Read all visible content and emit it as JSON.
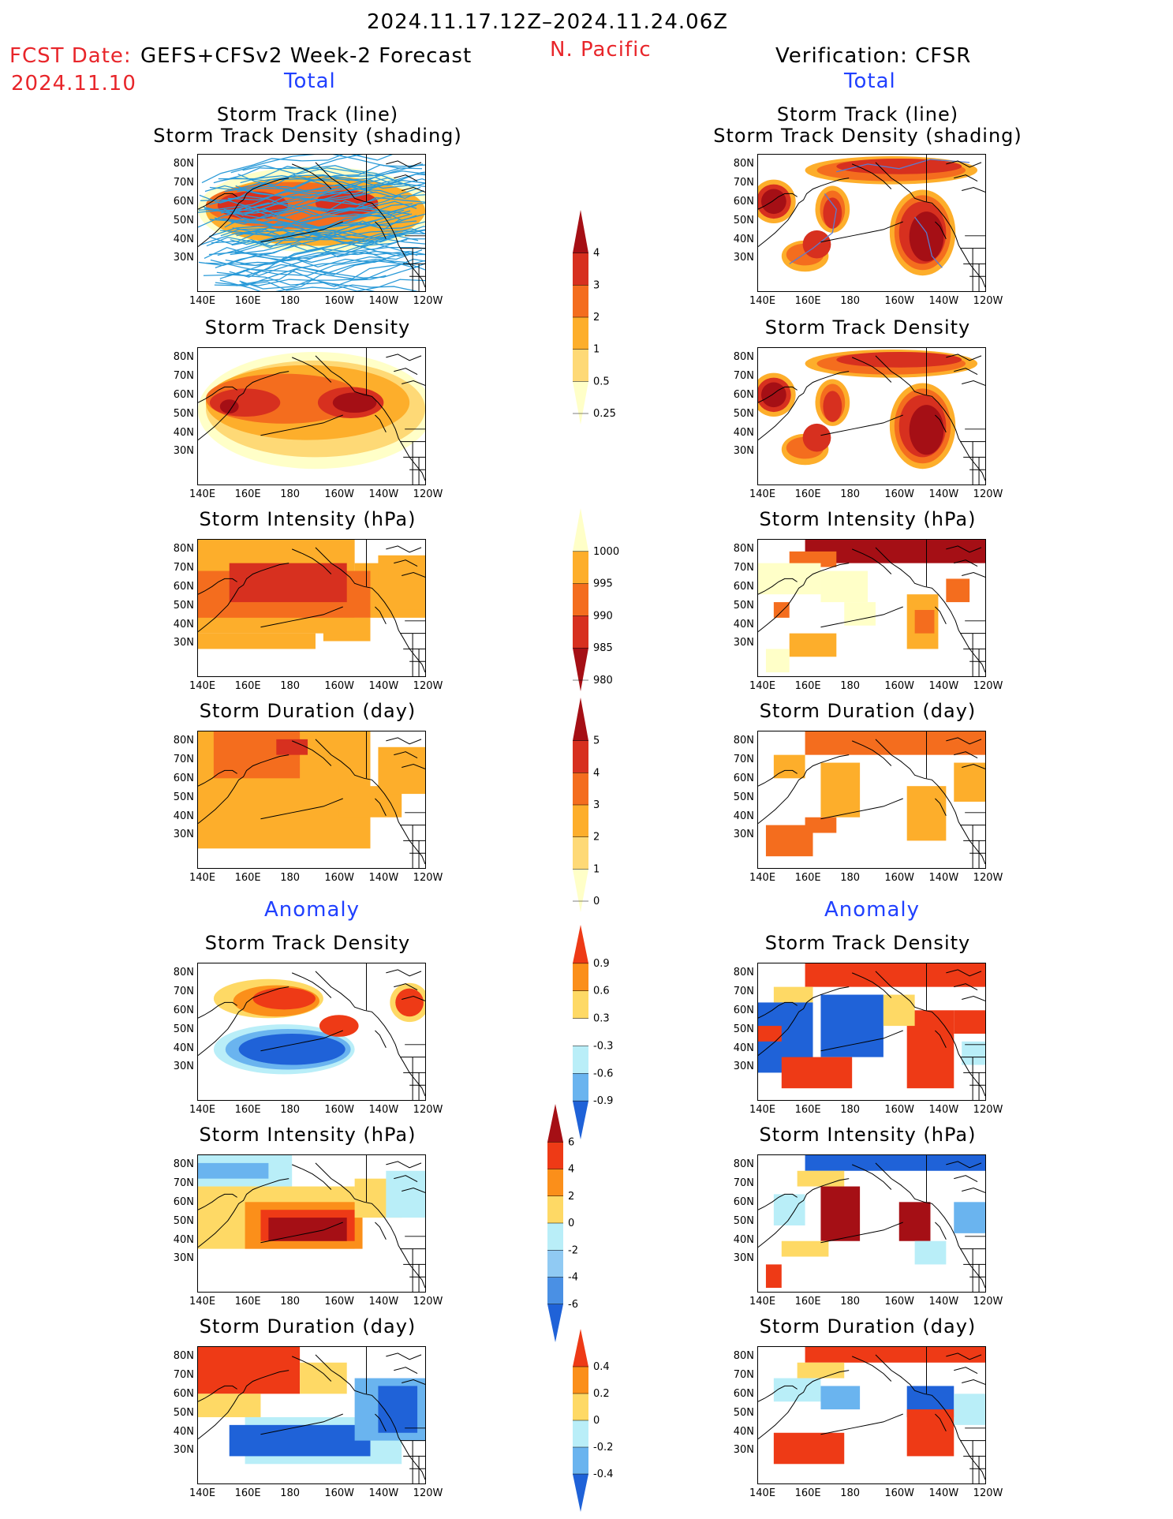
{
  "header": {
    "date_range": "2024.11.17.12Z–2024.11.24.06Z",
    "region": "N. Pacific",
    "fcst_label": "FCST Date:",
    "fcst_model": "GEFS+CFSv2 Week-2 Forecast",
    "fcst_date": "2024.11.10",
    "verification": "Verification: CFSR"
  },
  "sections": {
    "total": "Total",
    "anomaly": "Anomaly"
  },
  "panel_titles": {
    "track_line": "Storm Track (line)",
    "track_shading": "Storm Track Density (shading)",
    "density": "Storm Track Density",
    "intensity": "Storm Intensity (hPa)",
    "duration": "Storm Duration (day)"
  },
  "axes": {
    "lat": [
      "80N",
      "70N",
      "60N",
      "50N",
      "40N",
      "30N"
    ],
    "lon": [
      "140E",
      "160E",
      "180",
      "160W",
      "140W",
      "120W"
    ]
  },
  "colorbars": {
    "density_total": {
      "labels": [
        "4",
        "3",
        "2",
        "1",
        "0.5",
        "0.25"
      ],
      "colors": [
        "#a50f15",
        "#d7301f",
        "#f46d1e",
        "#fdae2b",
        "#fed976",
        "#ffffc8"
      ]
    },
    "intensity_total": {
      "labels": [
        "1000",
        "995",
        "990",
        "985",
        "980"
      ],
      "colors": [
        "#ffffc8",
        "#fdae2b",
        "#f46d1e",
        "#d7301f",
        "#a50f15"
      ]
    },
    "duration_total": {
      "labels": [
        "5",
        "4",
        "3",
        "2",
        "1",
        "0"
      ],
      "colors": [
        "#a50f15",
        "#d7301f",
        "#f46d1e",
        "#fdae2b",
        "#fed976",
        "#ffffc8"
      ]
    },
    "density_anom": {
      "labels": [
        "0.9",
        "0.6",
        "0.3",
        "-0.3",
        "-0.6",
        "-0.9"
      ],
      "colors": [
        "#ee3a16",
        "#fb8f1a",
        "#fed965",
        "#ffffff",
        "#b9eef8",
        "#6ab4ef",
        "#1f62d8"
      ]
    },
    "intensity_anom": {
      "labels": [
        "6",
        "4",
        "2",
        "0",
        "-2",
        "-4",
        "-6"
      ],
      "colors": [
        "#a50f15",
        "#ee3a16",
        "#fb8f1a",
        "#fed965",
        "#b9eef8",
        "#90caf3",
        "#4a90e4",
        "#1f62d8"
      ]
    },
    "duration_anom": {
      "labels": [
        "0.4",
        "0.2",
        "0",
        "-0.2",
        "-0.4"
      ],
      "colors": [
        "#ee3a16",
        "#fb8f1a",
        "#fed965",
        "#b9eef8",
        "#6ab4ef",
        "#1f62d8"
      ]
    }
  }
}
